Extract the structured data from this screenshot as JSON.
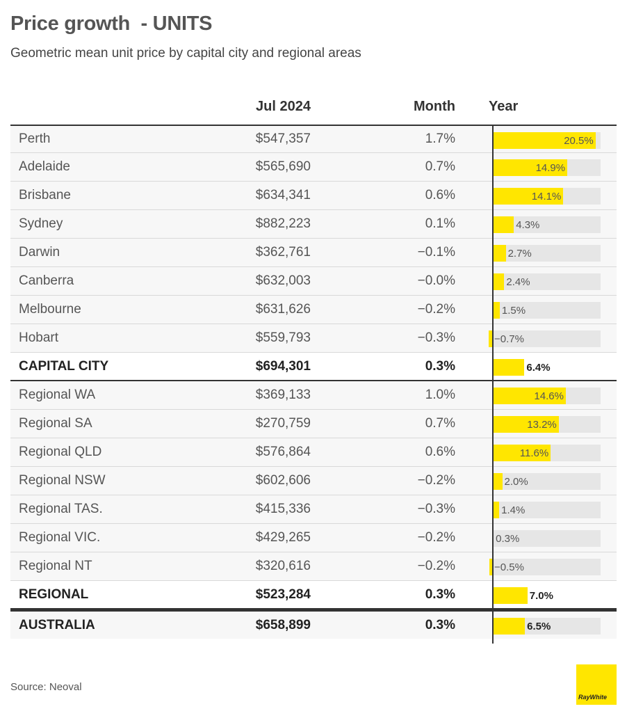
{
  "title": "Price growth  - UNITS",
  "subtitle": "Geometric mean unit price by capital city and regional areas",
  "columns": {
    "value": "Jul 2024",
    "month": "Month",
    "year": "Year"
  },
  "source": "Source: Neoval",
  "logo": "RayWhite",
  "colors": {
    "bar": "#ffe600",
    "bar_track": "#e6e6e6",
    "row_bg": "#f7f7f7"
  },
  "chart_data": {
    "type": "table",
    "columns": [
      "",
      "Jul 2024",
      "Month",
      "Year"
    ],
    "rows": [
      {
        "name": "Perth",
        "value": "$547,357",
        "month": "1.7%",
        "year": 20.5,
        "year_label": "20.5%",
        "style": "normal"
      },
      {
        "name": "Adelaide",
        "value": "$565,690",
        "month": "0.7%",
        "year": 14.9,
        "year_label": "14.9%",
        "style": "normal"
      },
      {
        "name": "Brisbane",
        "value": "$634,341",
        "month": "0.6%",
        "year": 14.1,
        "year_label": "14.1%",
        "style": "normal"
      },
      {
        "name": "Sydney",
        "value": "$882,223",
        "month": "0.1%",
        "year": 4.3,
        "year_label": "4.3%",
        "style": "normal"
      },
      {
        "name": "Darwin",
        "value": "$362,761",
        "month": "−0.1%",
        "year": 2.7,
        "year_label": "2.7%",
        "style": "normal"
      },
      {
        "name": "Canberra",
        "value": "$632,003",
        "month": "−0.0%",
        "year": 2.4,
        "year_label": "2.4%",
        "style": "normal"
      },
      {
        "name": "Melbourne",
        "value": "$631,626",
        "month": "−0.2%",
        "year": 1.5,
        "year_label": "1.5%",
        "style": "normal"
      },
      {
        "name": "Hobart",
        "value": "$559,793",
        "month": "−0.3%",
        "year": -0.7,
        "year_label": "−0.7%",
        "style": "normal"
      },
      {
        "name": "CAPITAL CITY",
        "value": "$694,301",
        "month": "0.3%",
        "year": 6.4,
        "year_label": "6.4%",
        "style": "bold"
      },
      {
        "name": "Regional WA",
        "value": "$369,133",
        "month": "1.0%",
        "year": 14.6,
        "year_label": "14.6%",
        "style": "normal"
      },
      {
        "name": "Regional SA",
        "value": "$270,759",
        "month": "0.7%",
        "year": 13.2,
        "year_label": "13.2%",
        "style": "normal"
      },
      {
        "name": "Regional QLD",
        "value": "$576,864",
        "month": "0.6%",
        "year": 11.6,
        "year_label": "11.6%",
        "style": "normal"
      },
      {
        "name": "Regional NSW",
        "value": "$602,606",
        "month": "−0.2%",
        "year": 2.0,
        "year_label": "2.0%",
        "style": "normal"
      },
      {
        "name": "Regional TAS.",
        "value": "$415,336",
        "month": "−0.3%",
        "year": 1.4,
        "year_label": "1.4%",
        "style": "normal"
      },
      {
        "name": "Regional VIC.",
        "value": "$429,265",
        "month": "−0.2%",
        "year": 0.3,
        "year_label": "0.3%",
        "style": "normal"
      },
      {
        "name": "Regional NT",
        "value": "$320,616",
        "month": "−0.2%",
        "year": -0.5,
        "year_label": "−0.5%",
        "style": "normal"
      },
      {
        "name": "REGIONAL",
        "value": "$523,284",
        "month": "0.3%",
        "year": 7.0,
        "year_label": "7.0%",
        "style": "bold"
      },
      {
        "name": "AUSTRALIA",
        "value": "$658,899",
        "month": "0.3%",
        "year": 6.5,
        "year_label": "6.5%",
        "style": "total"
      }
    ]
  }
}
